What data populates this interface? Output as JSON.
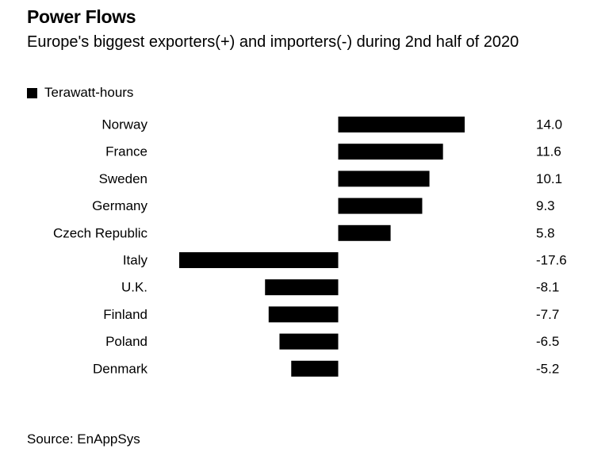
{
  "chart_data": {
    "type": "bar",
    "orientation": "horizontal",
    "title": "Power Flows",
    "subtitle": "Europe's biggest exporters(+) and importers(-) during 2nd half of 2020",
    "legend": {
      "entries": [
        "Terawatt-hours"
      ],
      "placement": "top-left"
    },
    "series": [
      {
        "name": "Terawatt-hours",
        "color": "#000000",
        "values": [
          14.0,
          11.6,
          10.1,
          9.3,
          5.8,
          -17.6,
          -8.1,
          -7.7,
          -6.5,
          -5.2
        ]
      }
    ],
    "categories": [
      "Norway",
      "France",
      "Sweden",
      "Germany",
      "Czech Republic",
      "Italy",
      "U.K.",
      "Finland",
      "Poland",
      "Denmark"
    ],
    "value_labels": [
      "14.0",
      "11.6",
      "10.1",
      "9.3",
      "5.8",
      "-17.6",
      "-8.1",
      "-7.7",
      "-6.5",
      "-5.2"
    ],
    "xlim": [
      -17.6,
      14.0
    ],
    "grid": false,
    "source": "Source: EnAppSys"
  }
}
